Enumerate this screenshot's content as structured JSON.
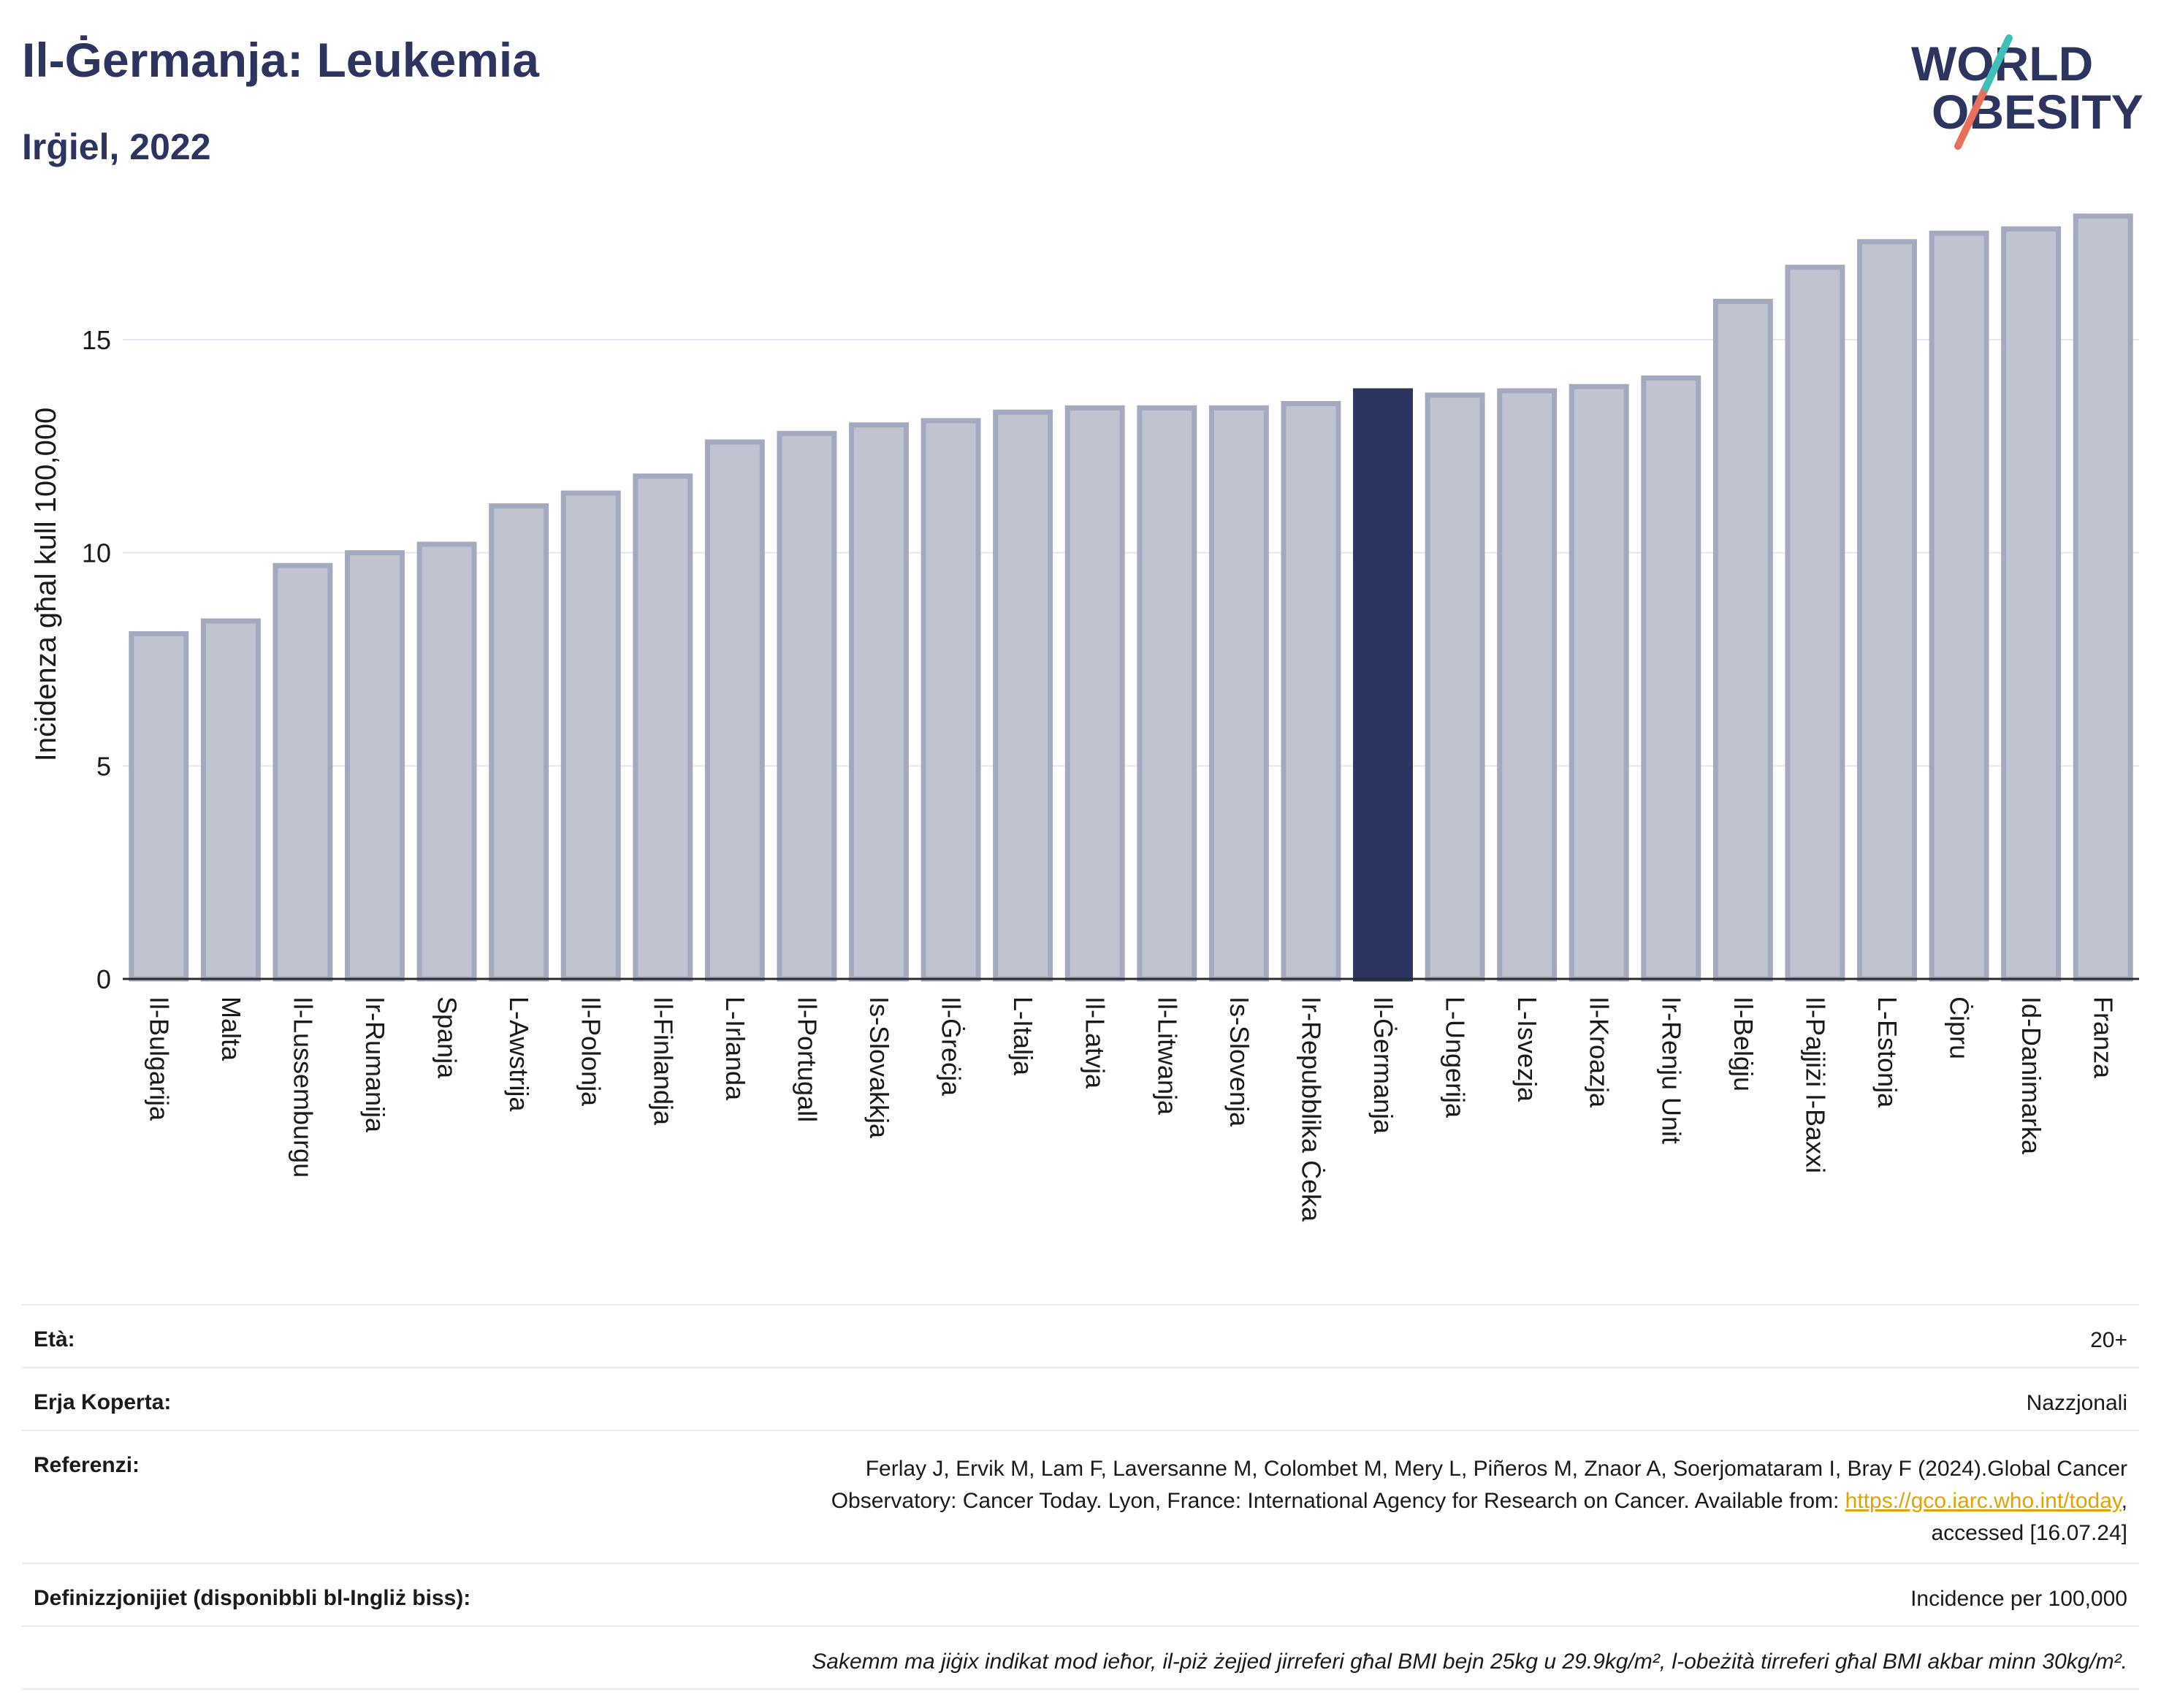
{
  "header": {
    "title": "Il-Ġermanja: Leukemia",
    "subtitle": "Irġiel, 2022"
  },
  "logo": {
    "line1": "WORLD",
    "line2": "OBESITY"
  },
  "chart_data": {
    "type": "bar",
    "ylabel": "Inċidenza għal kull 100,000",
    "xlabel": "",
    "ylim": [
      0,
      18
    ],
    "yticks": [
      0,
      5,
      10,
      15
    ],
    "grid": true,
    "highlight": "Il-Ġermanja",
    "categories": [
      "Il-Bulgarija",
      "Malta",
      "Il-Lussemburgu",
      "Ir-Rumanija",
      "Spanja",
      "L-Awstrija",
      "Il-Polonja",
      "Il-Finlandja",
      "L-Irlanda",
      "Il-Portugall",
      "Is-Slovakkja",
      "Il-Ġreċja",
      "L-Italja",
      "Il-Latvja",
      "Il-Litwanja",
      "Is-Slovenja",
      "Ir-Repubblika Ċeka",
      "Il-Ġermanja",
      "L-Ungerija",
      "L-Isvezja",
      "Il-Kroazja",
      "Ir-Renju Unit",
      "Il-Belġju",
      "Il-Pajjiżi l-Baxxi",
      "L-Estonja",
      "Ċipru",
      "Id-Danimarka",
      "Franza"
    ],
    "values": [
      8.1,
      8.4,
      9.7,
      10.0,
      10.2,
      11.1,
      11.4,
      11.8,
      12.6,
      12.8,
      13.0,
      13.1,
      13.3,
      13.4,
      13.4,
      13.4,
      13.5,
      13.8,
      13.7,
      13.8,
      13.9,
      14.1,
      15.9,
      16.7,
      17.3,
      17.5,
      17.6,
      17.9
    ]
  },
  "colors": {
    "bar": "#c0c4d1",
    "bar_stroke": "#a3a9bf",
    "highlight": "#2b3560",
    "title": "#2b3560",
    "link": "#e0a400",
    "logo_slash_top": "#3fbfb7",
    "logo_slash_bottom": "#e8705a"
  },
  "info": {
    "age_label": "Età:",
    "age_value": "20+",
    "area_label": "Erja Koperta:",
    "area_value": "Nazzjonali",
    "ref_label": "Referenzi:",
    "ref_line1": "Ferlay J, Ervik M, Lam F, Laversanne M, Colombet M, Mery L, Piñeros M, Znaor A, Soerjomataram I, Bray F (2024).Global Cancer",
    "ref_line2_pre": "Observatory: Cancer Today. Lyon, France: International Agency for Research on Cancer. Available from: ",
    "ref_link": "https://gco.iarc.who.int/today",
    "ref_line2_post": ",",
    "ref_line3": "accessed [16.07.24]",
    "def_label": "Definizzjonijiet (disponibbli bl-Ingliż biss):",
    "def_value": "Incidence per 100,000",
    "note": "Sakemm ma jiġix indikat mod ieħor, il-piż żejjed jirreferi għal BMI bejn 25kg u 29.9kg/m², l-obeżità tirreferi għal BMI akbar minn 30kg/m²."
  }
}
